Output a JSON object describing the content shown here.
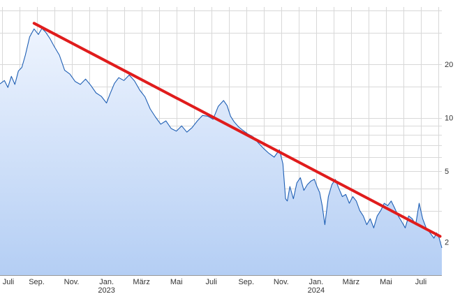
{
  "chart_data": {
    "type": "area",
    "title": "",
    "xlabel": "",
    "ylabel": "",
    "y_scale": "log",
    "ylim": [
      1.3,
      42
    ],
    "grid": true,
    "y_ticks": [
      {
        "value": 2,
        "label": "2"
      },
      {
        "value": 5,
        "label": "5"
      },
      {
        "value": 10,
        "label": "10"
      },
      {
        "value": 20,
        "label": "20"
      }
    ],
    "x_ticks": [
      {
        "month": 0,
        "label": "Juli",
        "year": ""
      },
      {
        "month": 2,
        "label": "Sep.",
        "year": ""
      },
      {
        "month": 4,
        "label": "Nov.",
        "year": ""
      },
      {
        "month": 6,
        "label": "Jan.",
        "year": "2023"
      },
      {
        "month": 8,
        "label": "März",
        "year": ""
      },
      {
        "month": 10,
        "label": "Mai",
        "year": ""
      },
      {
        "month": 12,
        "label": "Juli",
        "year": ""
      },
      {
        "month": 14,
        "label": "Sep.",
        "year": ""
      },
      {
        "month": 16,
        "label": "Nov.",
        "year": ""
      },
      {
        "month": 18,
        "label": "Jan.",
        "year": "2024"
      },
      {
        "month": 20,
        "label": "März",
        "year": ""
      },
      {
        "month": 22,
        "label": "Mai",
        "year": ""
      },
      {
        "month": 24,
        "label": "Juli",
        "year": ""
      }
    ],
    "x_month_range": [
      -0.1,
      25.2
    ],
    "series": [
      {
        "type": "area",
        "x": [
          -0.1,
          0.15,
          0.35,
          0.55,
          0.75,
          0.95,
          1.15,
          1.35,
          1.6,
          1.85,
          2.1,
          2.3,
          2.5,
          2.75,
          3.0,
          3.3,
          3.6,
          3.9,
          4.2,
          4.5,
          4.8,
          5.1,
          5.4,
          5.7,
          6.0,
          6.2,
          6.45,
          6.7,
          7.0,
          7.3,
          7.6,
          7.9,
          8.2,
          8.5,
          8.8,
          9.1,
          9.4,
          9.7,
          10.0,
          10.3,
          10.6,
          10.9,
          11.2,
          11.5,
          11.8,
          12.1,
          12.4,
          12.7,
          12.9,
          13.1,
          13.3,
          13.55,
          13.8,
          14.1,
          14.4,
          14.7,
          15.0,
          15.3,
          15.6,
          15.9,
          16.1,
          16.25,
          16.35,
          16.5,
          16.7,
          16.9,
          17.1,
          17.3,
          17.5,
          17.7,
          17.9,
          18.05,
          18.2,
          18.35,
          18.5,
          18.7,
          18.9,
          19.1,
          19.3,
          19.5,
          19.7,
          19.9,
          20.1,
          20.3,
          20.5,
          20.7,
          20.9,
          21.1,
          21.3,
          21.5,
          21.7,
          21.9,
          22.1,
          22.3,
          22.5,
          22.7,
          22.9,
          23.1,
          23.3,
          23.5,
          23.7,
          23.9,
          24.1,
          24.3,
          24.45,
          24.6,
          24.75,
          24.9,
          25.05,
          25.2
        ],
        "values": [
          15.5,
          16.2,
          14.8,
          17.1,
          15.4,
          18.3,
          19.2,
          22.5,
          28.5,
          31.6,
          29.4,
          31.8,
          30.4,
          28.0,
          25.2,
          22.5,
          18.5,
          17.6,
          16.0,
          15.4,
          16.5,
          15.2,
          13.8,
          13.2,
          12.1,
          13.6,
          15.6,
          16.8,
          16.2,
          17.4,
          16.1,
          14.3,
          13.1,
          11.2,
          10.1,
          9.2,
          9.6,
          8.7,
          8.4,
          9.0,
          8.3,
          8.8,
          9.6,
          10.3,
          10.2,
          9.8,
          11.6,
          12.5,
          11.7,
          10.2,
          9.5,
          8.9,
          8.5,
          8.1,
          7.8,
          7.2,
          6.7,
          6.3,
          6.0,
          6.6,
          5.5,
          3.5,
          3.4,
          4.1,
          3.5,
          4.3,
          4.6,
          3.9,
          4.2,
          4.4,
          4.5,
          4.1,
          3.8,
          3.2,
          2.5,
          3.6,
          4.2,
          4.5,
          4.0,
          3.6,
          3.7,
          3.3,
          3.6,
          3.4,
          3.0,
          2.8,
          2.5,
          2.7,
          2.4,
          2.8,
          3.0,
          3.3,
          3.2,
          3.4,
          3.1,
          2.8,
          2.6,
          2.4,
          2.8,
          2.7,
          2.5,
          3.3,
          2.7,
          2.4,
          2.3,
          2.2,
          2.1,
          2.25,
          2.1,
          1.85
        ]
      },
      {
        "type": "trendline",
        "x": [
          1.85,
          25.1
        ],
        "values": [
          34.0,
          2.15
        ]
      }
    ]
  },
  "colors": {
    "line": "#1f5fb4",
    "fill_top": "#eef4fe",
    "fill_bottom": "#b4cef4",
    "trend": "#e01c1c",
    "grid": "#d8d8d8"
  }
}
